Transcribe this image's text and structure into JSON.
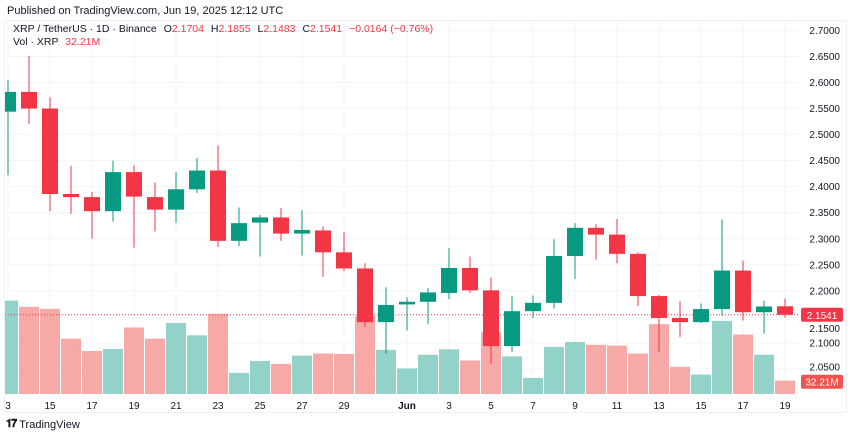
{
  "published": "Published on TradingView.com, Jun 19, 2025 12:12 UTC",
  "legend": {
    "symbol": "XRP / TetherUS · 1D · Binance",
    "o_label": "O",
    "o": "2.1704",
    "h_label": "H",
    "h": "2.1855",
    "l_label": "L",
    "l": "2.1483",
    "c_label": "C",
    "c": "2.1541",
    "change": "−0.0164 (−0.76%)",
    "vol_label": "Vol · XRP",
    "vol": "32.21M"
  },
  "brand": "TradingView",
  "colors": {
    "up": "#089981",
    "down": "#f23645",
    "up_vol": "#92d2c9",
    "down_vol": "#f7a9a7",
    "grid": "#f2f4f7"
  },
  "chart_data": {
    "type": "candlestick",
    "title": "XRP / TetherUS · 1D · Binance",
    "ylim": [
      2.03,
      2.71
    ],
    "y_ticks": [
      "2.7000",
      "2.6500",
      "2.6000",
      "2.5500",
      "2.5000",
      "2.4500",
      "2.4000",
      "2.3500",
      "2.3000",
      "2.2500",
      "2.2000",
      "2.1500",
      "2.1000",
      "2.0500"
    ],
    "x_ticks": [
      {
        "label": "3",
        "index": 0
      },
      {
        "label": "15",
        "index": 2
      },
      {
        "label": "17",
        "index": 4
      },
      {
        "label": "19",
        "index": 6
      },
      {
        "label": "21",
        "index": 8
      },
      {
        "label": "23",
        "index": 10
      },
      {
        "label": "25",
        "index": 12
      },
      {
        "label": "27",
        "index": 14
      },
      {
        "label": "29",
        "index": 16
      },
      {
        "label": "Jun",
        "index": 19
      },
      {
        "label": "3",
        "index": 21
      },
      {
        "label": "5",
        "index": 23
      },
      {
        "label": "7",
        "index": 25
      },
      {
        "label": "9",
        "index": 27
      },
      {
        "label": "11",
        "index": 29
      },
      {
        "label": "13",
        "index": 31
      },
      {
        "label": "15",
        "index": 33
      },
      {
        "label": "17",
        "index": 35
      },
      {
        "label": "19",
        "index": 37
      }
    ],
    "last_price": "2.1541",
    "last_volume": "32.21M",
    "grid": true,
    "candles": [
      {
        "date": "May 13",
        "o": 2.544,
        "h": 2.605,
        "l": 2.422,
        "c": 2.582,
        "v": 226
      },
      {
        "date": "May 14",
        "o": 2.582,
        "h": 2.651,
        "l": 2.52,
        "c": 2.55,
        "v": 211
      },
      {
        "date": "May 15",
        "o": 2.55,
        "h": 2.572,
        "l": 2.353,
        "c": 2.386,
        "v": 206
      },
      {
        "date": "May 16",
        "o": 2.386,
        "h": 2.44,
        "l": 2.348,
        "c": 2.38,
        "v": 134
      },
      {
        "date": "May 17",
        "o": 2.38,
        "h": 2.39,
        "l": 2.3,
        "c": 2.353,
        "v": 104
      },
      {
        "date": "May 18",
        "o": 2.353,
        "h": 2.45,
        "l": 2.333,
        "c": 2.428,
        "v": 109
      },
      {
        "date": "May 19",
        "o": 2.428,
        "h": 2.441,
        "l": 2.283,
        "c": 2.381,
        "v": 161
      },
      {
        "date": "May 20",
        "o": 2.38,
        "h": 2.408,
        "l": 2.314,
        "c": 2.356,
        "v": 134
      },
      {
        "date": "May 21",
        "o": 2.356,
        "h": 2.428,
        "l": 2.331,
        "c": 2.395,
        "v": 172
      },
      {
        "date": "May 22",
        "o": 2.395,
        "h": 2.455,
        "l": 2.388,
        "c": 2.431,
        "v": 142
      },
      {
        "date": "May 23",
        "o": 2.431,
        "h": 2.479,
        "l": 2.284,
        "c": 2.296,
        "v": 194
      },
      {
        "date": "May 24",
        "o": 2.296,
        "h": 2.36,
        "l": 2.286,
        "c": 2.33,
        "v": 51
      },
      {
        "date": "May 25",
        "o": 2.331,
        "h": 2.346,
        "l": 2.266,
        "c": 2.341,
        "v": 80
      },
      {
        "date": "May 26",
        "o": 2.341,
        "h": 2.359,
        "l": 2.296,
        "c": 2.31,
        "v": 73
      },
      {
        "date": "May 27",
        "o": 2.31,
        "h": 2.355,
        "l": 2.268,
        "c": 2.317,
        "v": 93
      },
      {
        "date": "May 28",
        "o": 2.316,
        "h": 2.324,
        "l": 2.227,
        "c": 2.274,
        "v": 98
      },
      {
        "date": "May 29",
        "o": 2.274,
        "h": 2.313,
        "l": 2.238,
        "c": 2.243,
        "v": 97
      },
      {
        "date": "May 30",
        "o": 2.243,
        "h": 2.253,
        "l": 2.131,
        "c": 2.14,
        "v": 188
      },
      {
        "date": "May 31",
        "o": 2.14,
        "h": 2.207,
        "l": 2.08,
        "c": 2.173,
        "v": 107
      },
      {
        "date": "Jun 1",
        "o": 2.174,
        "h": 2.188,
        "l": 2.124,
        "c": 2.179,
        "v": 62
      },
      {
        "date": "Jun 2",
        "o": 2.179,
        "h": 2.205,
        "l": 2.136,
        "c": 2.197,
        "v": 95
      },
      {
        "date": "Jun 3",
        "o": 2.196,
        "h": 2.282,
        "l": 2.184,
        "c": 2.244,
        "v": 108
      },
      {
        "date": "Jun 4",
        "o": 2.244,
        "h": 2.266,
        "l": 2.196,
        "c": 2.201,
        "v": 81
      },
      {
        "date": "Jun 5",
        "o": 2.201,
        "h": 2.226,
        "l": 2.06,
        "c": 2.094,
        "v": 149
      },
      {
        "date": "Jun 6",
        "o": 2.094,
        "h": 2.19,
        "l": 2.082,
        "c": 2.161,
        "v": 91
      },
      {
        "date": "Jun 7",
        "o": 2.161,
        "h": 2.191,
        "l": 2.148,
        "c": 2.177,
        "v": 39
      },
      {
        "date": "Jun 8",
        "o": 2.177,
        "h": 2.299,
        "l": 2.166,
        "c": 2.267,
        "v": 114
      },
      {
        "date": "Jun 9",
        "o": 2.267,
        "h": 2.33,
        "l": 2.223,
        "c": 2.321,
        "v": 126
      },
      {
        "date": "Jun 10",
        "o": 2.321,
        "h": 2.328,
        "l": 2.26,
        "c": 2.308,
        "v": 119
      },
      {
        "date": "Jun 11",
        "o": 2.308,
        "h": 2.338,
        "l": 2.253,
        "c": 2.271,
        "v": 117
      },
      {
        "date": "Jun 12",
        "o": 2.271,
        "h": 2.274,
        "l": 2.171,
        "c": 2.19,
        "v": 98
      },
      {
        "date": "Jun 13",
        "o": 2.19,
        "h": 2.192,
        "l": 2.083,
        "c": 2.148,
        "v": 169
      },
      {
        "date": "Jun 14",
        "o": 2.148,
        "h": 2.18,
        "l": 2.111,
        "c": 2.14,
        "v": 66
      },
      {
        "date": "Jun 15",
        "o": 2.14,
        "h": 2.176,
        "l": 2.138,
        "c": 2.165,
        "v": 47
      },
      {
        "date": "Jun 16",
        "o": 2.165,
        "h": 2.337,
        "l": 2.152,
        "c": 2.239,
        "v": 177
      },
      {
        "date": "Jun 17",
        "o": 2.239,
        "h": 2.258,
        "l": 2.143,
        "c": 2.159,
        "v": 144
      },
      {
        "date": "Jun 18",
        "o": 2.159,
        "h": 2.181,
        "l": 2.118,
        "c": 2.17,
        "v": 95
      },
      {
        "date": "Jun 19",
        "o": 2.1704,
        "h": 2.1855,
        "l": 2.1483,
        "c": 2.1541,
        "v": 32.21
      }
    ]
  }
}
